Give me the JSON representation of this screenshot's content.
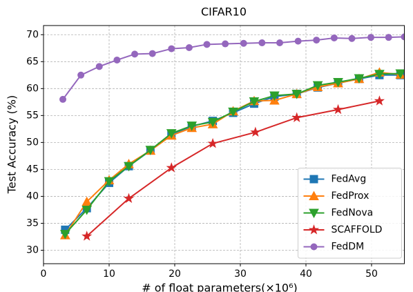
{
  "chart_data": {
    "type": "line",
    "title": "CIFAR10",
    "x_label": "# of float parameters(×10⁶)",
    "y_label": "Test Accuracy (%)",
    "xlim": [
      0,
      55
    ],
    "ylim": [
      27.5,
      71.7
    ],
    "xticks": [
      0,
      10,
      20,
      30,
      40,
      50
    ],
    "yticks": [
      30,
      35,
      40,
      45,
      50,
      55,
      60,
      65,
      70
    ],
    "grid": true,
    "legend": "lower right",
    "series": [
      {
        "name": "FedAvg",
        "color": "#1f77b4",
        "marker": "square",
        "x": [
          3.3,
          6.6,
          10,
          13,
          16.3,
          19.5,
          22.6,
          25.8,
          28.9,
          32.1,
          35.2,
          38.6,
          41.8,
          44.9,
          48.1,
          51.2,
          54.4
        ],
        "values": [
          33.8,
          37.8,
          42.5,
          45.6,
          48.5,
          51.5,
          53,
          54,
          55.5,
          57.2,
          58.5,
          59,
          60.2,
          61,
          61.8,
          62.5,
          62.5
        ]
      },
      {
        "name": "FedProx",
        "color": "#ff7f0e",
        "marker": "triangle-up",
        "x": [
          3.3,
          6.6,
          10,
          13,
          16.3,
          19.5,
          22.6,
          25.8,
          28.9,
          32.1,
          35.2,
          38.6,
          41.8,
          44.9,
          48.1,
          51.2,
          54.4
        ],
        "values": [
          32.8,
          39,
          43,
          46,
          48.5,
          51.3,
          52.7,
          53.4,
          55.8,
          57.7,
          57.8,
          59,
          60.3,
          61,
          61.8,
          63,
          62.6
        ]
      },
      {
        "name": "FedNova",
        "color": "#2ca02c",
        "marker": "triangle-down",
        "x": [
          3.3,
          6.6,
          10,
          13,
          16.3,
          19.5,
          22.6,
          25.8,
          28.9,
          32.1,
          35.2,
          38.6,
          41.8,
          44.9,
          48.1,
          51.2,
          54.4
        ],
        "values": [
          33,
          37.5,
          42.8,
          45.6,
          48.6,
          51.7,
          53.1,
          53.8,
          55.7,
          57.6,
          58.7,
          59,
          60.6,
          61.2,
          61.9,
          62.7,
          62.8
        ]
      },
      {
        "name": "SCAFFOLD",
        "color": "#d62728",
        "marker": "star",
        "x": [
          6.6,
          13,
          19.5,
          25.8,
          32.3,
          38.6,
          44.9,
          51.2
        ],
        "values": [
          32.6,
          39.6,
          45.3,
          49.8,
          51.9,
          54.6,
          56.1,
          57.7
        ]
      },
      {
        "name": "FedDM",
        "color": "#9467bd",
        "marker": "circle",
        "x": [
          2.95,
          5.7,
          8.5,
          11.2,
          13.9,
          16.6,
          19.5,
          22.2,
          24.9,
          27.7,
          30.5,
          33.3,
          36,
          38.8,
          41.6,
          44.3,
          47,
          49.9,
          52.6,
          55
        ],
        "values": [
          58,
          62.5,
          64.1,
          65.3,
          66.4,
          66.5,
          67.4,
          67.6,
          68.2,
          68.3,
          68.4,
          68.5,
          68.5,
          68.8,
          69,
          69.4,
          69.3,
          69.5,
          69.5,
          69.6
        ]
      }
    ]
  }
}
